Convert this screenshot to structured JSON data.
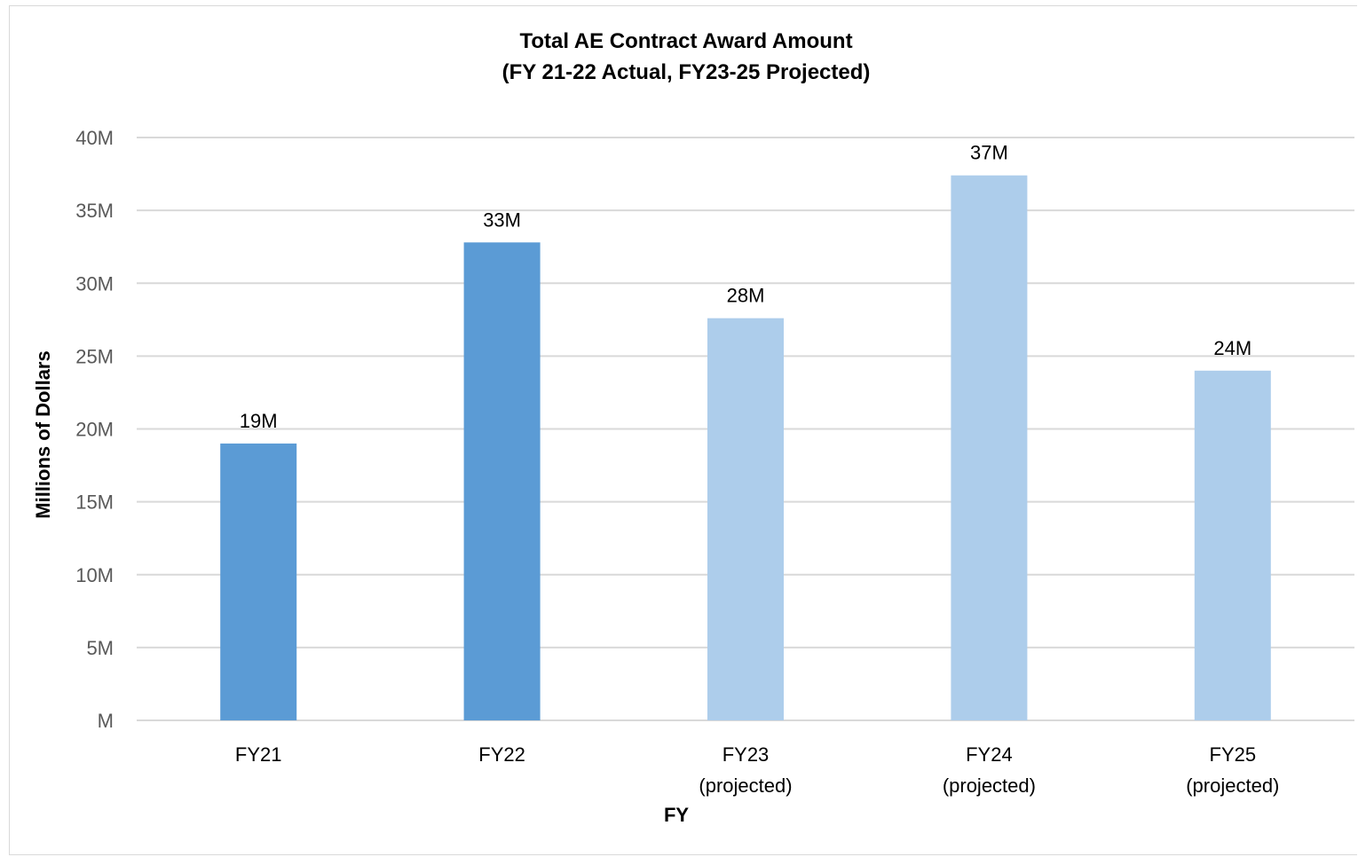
{
  "chart_data": {
    "type": "bar",
    "title": "Total AE Contract Award Amount",
    "subtitle": "(FY 21-22 Actual, FY23-25 Projected)",
    "xlabel": "FY",
    "ylabel": "Millions of Dollars",
    "categories": [
      [
        "FY21"
      ],
      [
        "FY22"
      ],
      [
        "FY23",
        "(projected)"
      ],
      [
        "FY24",
        "(projected)"
      ],
      [
        "FY25",
        "(projected)"
      ]
    ],
    "values": [
      19,
      32.8,
      27.6,
      37.4,
      24
    ],
    "data_labels": [
      "19M",
      "33M",
      "28M",
      "37M",
      "24M"
    ],
    "bar_colors": [
      "#5b9bd5",
      "#5b9bd5",
      "#adcdeb",
      "#adcdeb",
      "#adcdeb"
    ],
    "ylim": [
      0,
      40
    ],
    "yticks": [
      0,
      5,
      10,
      15,
      20,
      25,
      30,
      35,
      40
    ],
    "ytick_labels": [
      "M",
      "5M",
      "10M",
      "15M",
      "20M",
      "25M",
      "30M",
      "35M",
      "40M"
    ],
    "grid": true,
    "gridline_color": "#d9d9d9",
    "legend": "none"
  }
}
